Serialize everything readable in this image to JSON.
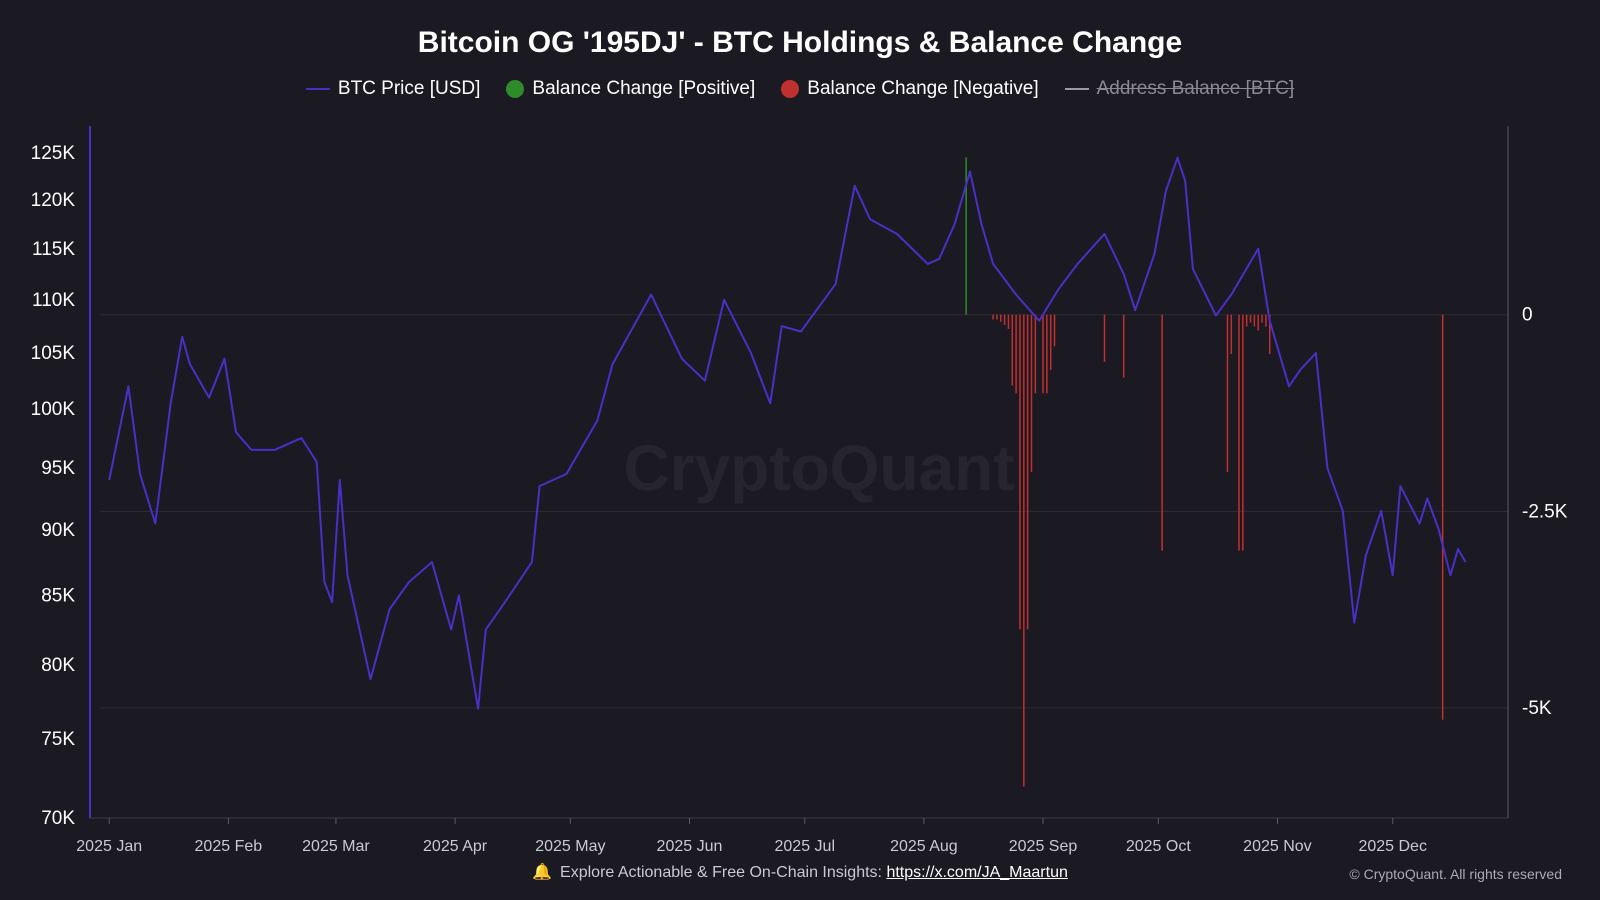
{
  "chart_data": {
    "type": "line",
    "title": "Bitcoin OG '195DJ' - BTC Holdings & Balance Change",
    "watermark": "CryptoQuant",
    "legend": [
      {
        "label": "BTC Price [USD]",
        "color": "#4b2fc4",
        "marker": "line",
        "visible": true
      },
      {
        "label": "Balance Change [Positive]",
        "color": "#2e8b2a",
        "marker": "dot",
        "visible": true
      },
      {
        "label": "Balance Change [Negative]",
        "color": "#c0302e",
        "marker": "dot",
        "visible": true
      },
      {
        "label": "Address Balance [BTC]",
        "color": "#9a9aa2",
        "marker": "line",
        "visible": false
      }
    ],
    "x_ticks": [
      {
        "label": "2025 Jan",
        "date": "2025-01-01"
      },
      {
        "label": "2025 Feb",
        "date": "2025-02-01"
      },
      {
        "label": "2025 Mar",
        "date": "2025-03-01"
      },
      {
        "label": "2025 Apr",
        "date": "2025-04-01"
      },
      {
        "label": "2025 May",
        "date": "2025-05-01"
      },
      {
        "label": "2025 Jun",
        "date": "2025-06-01"
      },
      {
        "label": "2025 Jul",
        "date": "2025-07-01"
      },
      {
        "label": "2025 Aug",
        "date": "2025-08-01"
      },
      {
        "label": "2025 Sep",
        "date": "2025-09-01"
      },
      {
        "label": "2025 Oct",
        "date": "2025-10-01"
      },
      {
        "label": "2025 Nov",
        "date": "2025-11-01"
      },
      {
        "label": "2025 Dec",
        "date": "2025-12-01"
      }
    ],
    "xlim": [
      "2024-12-27",
      "2025-12-31"
    ],
    "y_left": {
      "scale": "log",
      "lim": [
        70000,
        128000
      ],
      "ticks": [
        {
          "label": "70K",
          "value": 70000
        },
        {
          "label": "75K",
          "value": 75000
        },
        {
          "label": "80K",
          "value": 80000
        },
        {
          "label": "85K",
          "value": 85000
        },
        {
          "label": "90K",
          "value": 90000
        },
        {
          "label": "95K",
          "value": 95000
        },
        {
          "label": "100K",
          "value": 100000
        },
        {
          "label": "105K",
          "value": 105000
        },
        {
          "label": "110K",
          "value": 110000
        },
        {
          "label": "115K",
          "value": 115000
        },
        {
          "label": "120K",
          "value": 120000
        },
        {
          "label": "125K",
          "value": 125000
        }
      ]
    },
    "y_right": {
      "scale": "linear",
      "lim": [
        -6400,
        2400
      ],
      "ticks": [
        {
          "label": "0",
          "value": 0
        },
        {
          "label": "-2.5K",
          "value": -2500
        },
        {
          "label": "-5K",
          "value": -5000
        }
      ]
    },
    "series": [
      {
        "name": "BTC Price [USD]",
        "color": "#4b2fc4",
        "points": [
          [
            "2025-01-01",
            94000
          ],
          [
            "2025-01-06",
            102000
          ],
          [
            "2025-01-09",
            94500
          ],
          [
            "2025-01-13",
            90500
          ],
          [
            "2025-01-17",
            100500
          ],
          [
            "2025-01-20",
            106500
          ],
          [
            "2025-01-22",
            104000
          ],
          [
            "2025-01-27",
            101000
          ],
          [
            "2025-01-31",
            104500
          ],
          [
            "2025-02-03",
            98000
          ],
          [
            "2025-02-07",
            96500
          ],
          [
            "2025-02-13",
            96500
          ],
          [
            "2025-02-20",
            97500
          ],
          [
            "2025-02-24",
            95500
          ],
          [
            "2025-02-26",
            86000
          ],
          [
            "2025-02-28",
            84500
          ],
          [
            "2025-03-02",
            94000
          ],
          [
            "2025-03-04",
            86500
          ],
          [
            "2025-03-10",
            79000
          ],
          [
            "2025-03-15",
            84000
          ],
          [
            "2025-03-20",
            86000
          ],
          [
            "2025-03-26",
            87500
          ],
          [
            "2025-03-31",
            82500
          ],
          [
            "2025-04-02",
            85000
          ],
          [
            "2025-04-07",
            77000
          ],
          [
            "2025-04-09",
            82500
          ],
          [
            "2025-04-14",
            84500
          ],
          [
            "2025-04-21",
            87500
          ],
          [
            "2025-04-23",
            93500
          ],
          [
            "2025-04-30",
            94500
          ],
          [
            "2025-05-08",
            99000
          ],
          [
            "2025-05-12",
            104000
          ],
          [
            "2025-05-22",
            110500
          ],
          [
            "2025-05-30",
            104500
          ],
          [
            "2025-06-05",
            102500
          ],
          [
            "2025-06-10",
            110000
          ],
          [
            "2025-06-17",
            105000
          ],
          [
            "2025-06-22",
            100500
          ],
          [
            "2025-06-25",
            107500
          ],
          [
            "2025-06-30",
            107000
          ],
          [
            "2025-07-09",
            111500
          ],
          [
            "2025-07-14",
            121500
          ],
          [
            "2025-07-18",
            118000
          ],
          [
            "2025-07-25",
            116500
          ],
          [
            "2025-08-02",
            113500
          ],
          [
            "2025-08-05",
            114000
          ],
          [
            "2025-08-09",
            117500
          ],
          [
            "2025-08-13",
            123000
          ],
          [
            "2025-08-16",
            117500
          ],
          [
            "2025-08-19",
            113500
          ],
          [
            "2025-08-25",
            110500
          ],
          [
            "2025-08-31",
            108000
          ],
          [
            "2025-09-05",
            111000
          ],
          [
            "2025-09-10",
            113500
          ],
          [
            "2025-09-17",
            116500
          ],
          [
            "2025-09-22",
            112500
          ],
          [
            "2025-09-25",
            109000
          ],
          [
            "2025-09-30",
            114500
          ],
          [
            "2025-10-03",
            121000
          ],
          [
            "2025-10-06",
            124500
          ],
          [
            "2025-10-08",
            122000
          ],
          [
            "2025-10-10",
            113000
          ],
          [
            "2025-10-16",
            108500
          ],
          [
            "2025-10-20",
            110500
          ],
          [
            "2025-10-27",
            115000
          ],
          [
            "2025-10-30",
            108000
          ],
          [
            "2025-11-04",
            102000
          ],
          [
            "2025-11-07",
            103500
          ],
          [
            "2025-11-11",
            105000
          ],
          [
            "2025-11-14",
            95000
          ],
          [
            "2025-11-18",
            91500
          ],
          [
            "2025-11-21",
            83000
          ],
          [
            "2025-11-24",
            88000
          ],
          [
            "2025-11-28",
            91500
          ],
          [
            "2025-12-01",
            86500
          ],
          [
            "2025-12-03",
            93500
          ],
          [
            "2025-12-08",
            90500
          ],
          [
            "2025-12-10",
            92500
          ],
          [
            "2025-12-13",
            90000
          ],
          [
            "2025-12-16",
            86500
          ],
          [
            "2025-12-18",
            88500
          ],
          [
            "2025-12-20",
            87500
          ]
        ]
      },
      {
        "name": "Balance Change [Negative]",
        "color": "#c0302e",
        "type": "bar",
        "points": [
          [
            "2025-08-19",
            -60
          ],
          [
            "2025-08-20",
            -60
          ],
          [
            "2025-08-21",
            -90
          ],
          [
            "2025-08-22",
            -130
          ],
          [
            "2025-08-23",
            -180
          ],
          [
            "2025-08-24",
            -900
          ],
          [
            "2025-08-25",
            -1000
          ],
          [
            "2025-08-26",
            -4000
          ],
          [
            "2025-08-27",
            -6000
          ],
          [
            "2025-08-28",
            -4000
          ],
          [
            "2025-08-29",
            -2000
          ],
          [
            "2025-08-30",
            -1000
          ],
          [
            "2025-09-01",
            -1000
          ],
          [
            "2025-09-02",
            -1000
          ],
          [
            "2025-09-03",
            -700
          ],
          [
            "2025-09-04",
            -400
          ],
          [
            "2025-09-17",
            -600
          ],
          [
            "2025-09-22",
            -800
          ],
          [
            "2025-10-02",
            -3000
          ],
          [
            "2025-10-19",
            -2000
          ],
          [
            "2025-10-20",
            -500
          ],
          [
            "2025-10-22",
            -3000
          ],
          [
            "2025-10-23",
            -3000
          ],
          [
            "2025-10-24",
            -150
          ],
          [
            "2025-10-25",
            -100
          ],
          [
            "2025-10-26",
            -150
          ],
          [
            "2025-10-27",
            -200
          ],
          [
            "2025-10-28",
            -100
          ],
          [
            "2025-10-29",
            -150
          ],
          [
            "2025-10-30",
            -500
          ],
          [
            "2025-12-14",
            -5150
          ]
        ]
      },
      {
        "name": "Balance Change [Positive]",
        "color": "#2e8b2a",
        "type": "bar",
        "points": [
          [
            "2025-08-12",
            2000
          ]
        ]
      }
    ]
  },
  "footer": {
    "text": "Explore Actionable & Free On-Chain Insights:",
    "link": "https://x.com/JA_Maartun",
    "copyright": "© CryptoQuant. All rights reserved"
  }
}
